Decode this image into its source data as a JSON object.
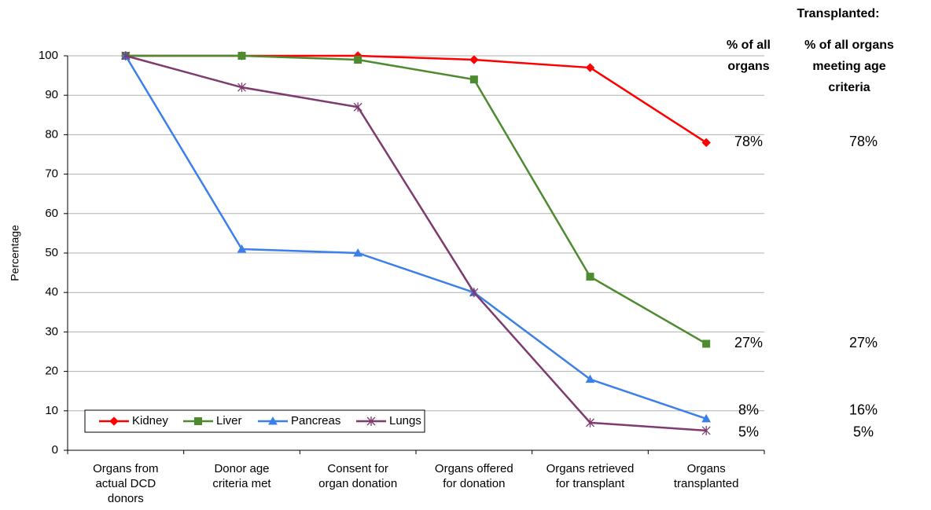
{
  "chart_data": {
    "type": "line",
    "ylabel": "Percentage",
    "categories": [
      "Organs from\nactual DCD\ndonors",
      "Donor age\ncriteria met",
      "Consent for\norgan donation",
      "Organs offered\nfor donation",
      "Organs retrieved\nfor transplant",
      "Organs\ntransplanted"
    ],
    "series": [
      {
        "name": "Kidney",
        "color": "#ff0000",
        "marker": "diamond",
        "values": [
          100,
          100,
          100,
          99,
          97,
          78
        ],
        "value_labels": [
          null,
          null,
          null,
          null,
          null,
          "78%"
        ]
      },
      {
        "name": "Liver",
        "color": "#4e8a30",
        "marker": "square",
        "values": [
          100,
          100,
          99,
          94,
          44,
          27
        ],
        "value_labels": [
          null,
          null,
          null,
          null,
          null,
          "27%"
        ]
      },
      {
        "name": "Pancreas",
        "color": "#3b80ea",
        "marker": "triangle",
        "values": [
          100,
          51,
          50,
          40,
          18,
          8
        ],
        "value_labels": [
          null,
          null,
          null,
          null,
          null,
          "8%"
        ]
      },
      {
        "name": "Lungs",
        "color": "#7d3b6f",
        "marker": "asterisk",
        "values": [
          100,
          92,
          87,
          40,
          7,
          5
        ],
        "value_labels": [
          null,
          null,
          null,
          null,
          null,
          "5%"
        ]
      }
    ],
    "ylim": [
      0,
      100
    ],
    "yticks": [
      0,
      10,
      20,
      30,
      40,
      50,
      60,
      70,
      80,
      90,
      100
    ],
    "grid": true,
    "legend": "lower left",
    "annotations": {
      "heading": "Transplanted:",
      "column1": "% of all\norgans",
      "column2": "% of all organs\nmeeting age\ncriteria",
      "column2_labels": [
        "78%",
        "27%",
        "16%",
        "5%"
      ]
    }
  }
}
